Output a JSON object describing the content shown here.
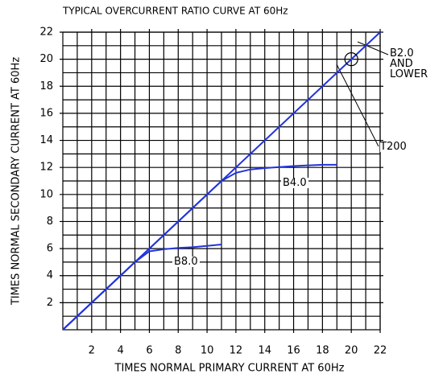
{
  "chart_data": {
    "type": "line",
    "title": "TYPICAL OVERCURRENT RATIO CURVE AT 60Hz",
    "x_label": "TIMES NORMAL PRIMARY CURRENT AT 60Hz",
    "y_label": "TIMES NORMAL SECONDARY CURRENT AT 60Hz",
    "xlim": [
      0,
      22
    ],
    "ylim": [
      0,
      22
    ],
    "xticks": [
      2,
      4,
      6,
      8,
      10,
      12,
      14,
      16,
      18,
      20,
      22
    ],
    "yticks": [
      2,
      4,
      6,
      8,
      10,
      12,
      14,
      16,
      18,
      20,
      22
    ],
    "minor_ticks": [
      1,
      3,
      5,
      7,
      9,
      11,
      13,
      15,
      17,
      19,
      21
    ],
    "grid": true,
    "series": [
      {
        "name": "B2.0\nAND\nLOWER",
        "color": "#2233dd",
        "x": [
          0,
          22
        ],
        "values": [
          0,
          22
        ]
      },
      {
        "name": "B4.0",
        "color": "#2233dd",
        "x": [
          0,
          10,
          11,
          12,
          13,
          14,
          16,
          18,
          19
        ],
        "values": [
          0,
          10,
          11,
          11.6,
          11.85,
          11.95,
          12.1,
          12.2,
          12.2
        ]
      },
      {
        "name": "B8.0",
        "color": "#2233dd",
        "x": [
          0,
          5,
          6,
          7,
          8,
          9,
          10,
          11
        ],
        "values": [
          0,
          5,
          5.8,
          5.95,
          6.05,
          6.1,
          6.2,
          6.3
        ]
      }
    ],
    "marker": {
      "label": "T200",
      "x": 20,
      "y": 20
    }
  }
}
